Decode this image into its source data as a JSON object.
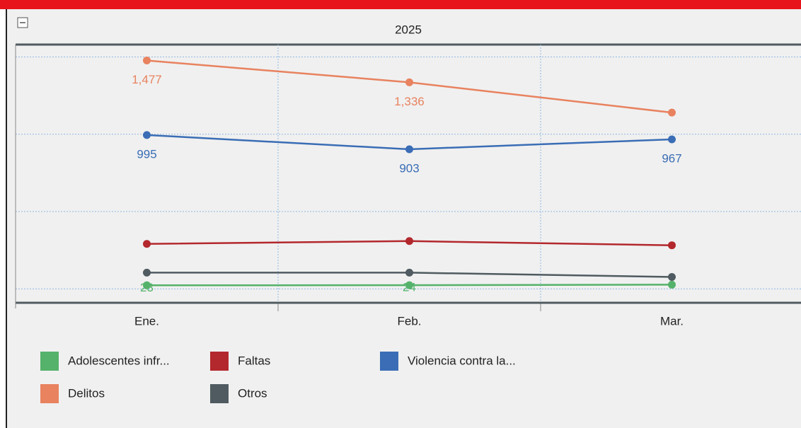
{
  "chart_data": {
    "type": "line",
    "title": "2025",
    "categories": [
      "Ene.",
      "Feb.",
      "Mar."
    ],
    "ylim": [
      -90,
      1580
    ],
    "yticks": [
      0,
      500,
      1000,
      1500
    ],
    "grid": true,
    "series": [
      {
        "name": "Adolescentes infr...",
        "color": "#55b26a",
        "values": [
          23,
          24,
          27
        ],
        "value_labels": [
          "23",
          "24",
          null
        ]
      },
      {
        "name": "Faltas",
        "color": "#b3282d",
        "values": [
          291,
          309,
          282
        ],
        "value_labels": [
          null,
          null,
          null
        ]
      },
      {
        "name": "Violencia contra la...",
        "color": "#3a6db5",
        "values": [
          995,
          903,
          967
        ],
        "value_labels": [
          "995",
          "903",
          "967"
        ]
      },
      {
        "name": "Delitos",
        "color": "#e8825f",
        "values": [
          1477,
          1336,
          1140
        ],
        "value_labels": [
          "1,477",
          "1,336",
          null
        ]
      },
      {
        "name": "Otros",
        "color": "#4f5b60",
        "values": [
          105,
          105,
          77
        ],
        "value_labels": [
          null,
          null,
          null
        ]
      }
    ]
  }
}
